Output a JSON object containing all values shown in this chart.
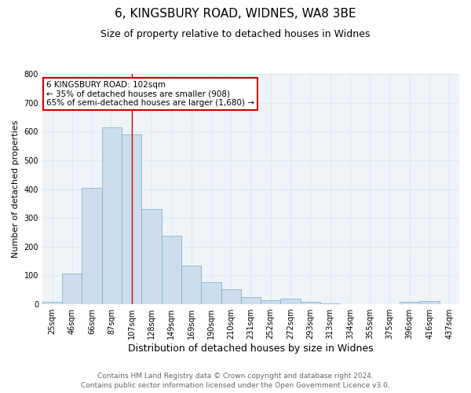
{
  "title1": "6, KINGSBURY ROAD, WIDNES, WA8 3BE",
  "title2": "Size of property relative to detached houses in Widnes",
  "xlabel": "Distribution of detached houses by size in Widnes",
  "ylabel": "Number of detached properties",
  "categories": [
    "25sqm",
    "46sqm",
    "66sqm",
    "87sqm",
    "107sqm",
    "128sqm",
    "149sqm",
    "169sqm",
    "190sqm",
    "210sqm",
    "231sqm",
    "252sqm",
    "272sqm",
    "293sqm",
    "313sqm",
    "334sqm",
    "355sqm",
    "375sqm",
    "396sqm",
    "416sqm",
    "437sqm"
  ],
  "values": [
    8,
    107,
    403,
    615,
    590,
    330,
    237,
    135,
    78,
    52,
    25,
    15,
    18,
    8,
    4,
    1,
    0,
    0,
    8,
    10,
    0
  ],
  "bar_color": "#ccdded",
  "bar_edge_color": "#7aaac8",
  "red_line_index": 4,
  "ylim": [
    0,
    800
  ],
  "yticks": [
    0,
    100,
    200,
    300,
    400,
    500,
    600,
    700,
    800
  ],
  "annotation_line1": "6 KINGSBURY ROAD: 102sqm",
  "annotation_line2": "← 35% of detached houses are smaller (908)",
  "annotation_line3": "65% of semi-detached houses are larger (1,680) →",
  "annotation_box_color": "#ffffff",
  "annotation_border_color": "#cc0000",
  "footer1": "Contains HM Land Registry data © Crown copyright and database right 2024.",
  "footer2": "Contains public sector information licensed under the Open Government Licence v3.0.",
  "grid_color": "#dde8f0",
  "bg_color": "#eef4f8",
  "title1_fontsize": 11,
  "title2_fontsize": 9,
  "xlabel_fontsize": 9,
  "ylabel_fontsize": 8,
  "tick_fontsize": 7,
  "annotation_fontsize": 7.5,
  "footer_fontsize": 6.5
}
